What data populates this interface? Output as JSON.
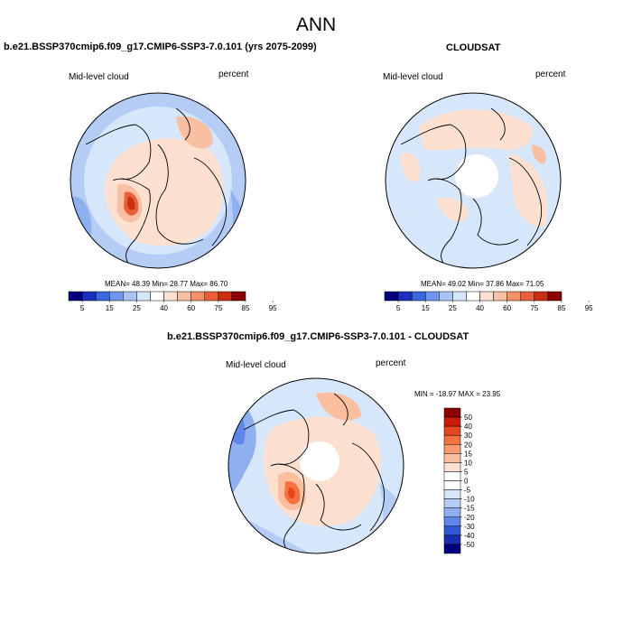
{
  "figure": {
    "title": "ANN"
  },
  "chart_data": [
    {
      "type": "heatmap",
      "projection": "polar-stereographic",
      "title": "b.e21.BSSP370cmip6.f09_g17.CMIP6-SSP3-7.0.101 (yrs 2075-2099)",
      "left_label": "Mid-level cloud",
      "right_label": "percent",
      "stats": {
        "mean": "48.39",
        "min": "28.77",
        "max": "86.70"
      },
      "stats_text": "MEAN=  48.39   Min=  28.77   Max=  86.70",
      "colorbar": {
        "orientation": "horizontal",
        "ticks": [
          "5",
          "15",
          "25",
          "40",
          "60",
          "75",
          "85",
          "95"
        ],
        "colors": [
          "#00007f",
          "#1a2fbf",
          "#3a66e0",
          "#6f96f0",
          "#a8c4f5",
          "#d6e6fb",
          "#ffffff",
          "#fde0d0",
          "#f9bfa2",
          "#f39167",
          "#e8603a",
          "#cc2e12",
          "#8b0000"
        ]
      }
    },
    {
      "type": "heatmap",
      "projection": "polar-stereographic",
      "title": "CLOUDSAT",
      "left_label": "Mid-level cloud",
      "right_label": "percent",
      "stats": {
        "mean": "49.02",
        "min": "37.86",
        "max": "71.05"
      },
      "stats_text": "MEAN=  49.02   Min=  37.86   Max=  71.05",
      "colorbar": {
        "orientation": "horizontal",
        "ticks": [
          "5",
          "15",
          "25",
          "40",
          "60",
          "75",
          "85",
          "95"
        ],
        "colors": [
          "#00007f",
          "#1a2fbf",
          "#3a66e0",
          "#6f96f0",
          "#a8c4f5",
          "#d6e6fb",
          "#ffffff",
          "#fde0d0",
          "#f9bfa2",
          "#f39167",
          "#e8603a",
          "#cc2e12",
          "#8b0000"
        ]
      }
    },
    {
      "type": "heatmap",
      "projection": "polar-stereographic",
      "title": "b.e21.BSSP370cmip6.f09_g17.CMIP6-SSP3-7.0.101 - CLOUDSAT",
      "left_label": "Mid-level cloud",
      "right_label": "percent",
      "stats": {
        "min": "-18.97",
        "max": "23.95"
      },
      "stats_text": "MIN = -18.97 MAX =  23.95",
      "colorbar": {
        "orientation": "vertical",
        "ticks": [
          "50",
          "40",
          "30",
          "20",
          "15",
          "10",
          "5",
          "0",
          "-5",
          "-10",
          "-15",
          "-20",
          "-30",
          "-40",
          "-50"
        ],
        "colors": [
          "#8b0000",
          "#cc1a0a",
          "#e8461f",
          "#f3713f",
          "#f99a70",
          "#fbbfa0",
          "#fde0d0",
          "#ffffff",
          "#ffffff",
          "#d6e6fb",
          "#b5cdf5",
          "#8fb0f0",
          "#5f86e8",
          "#3258d6",
          "#1a2fb0",
          "#00007f"
        ]
      }
    }
  ]
}
